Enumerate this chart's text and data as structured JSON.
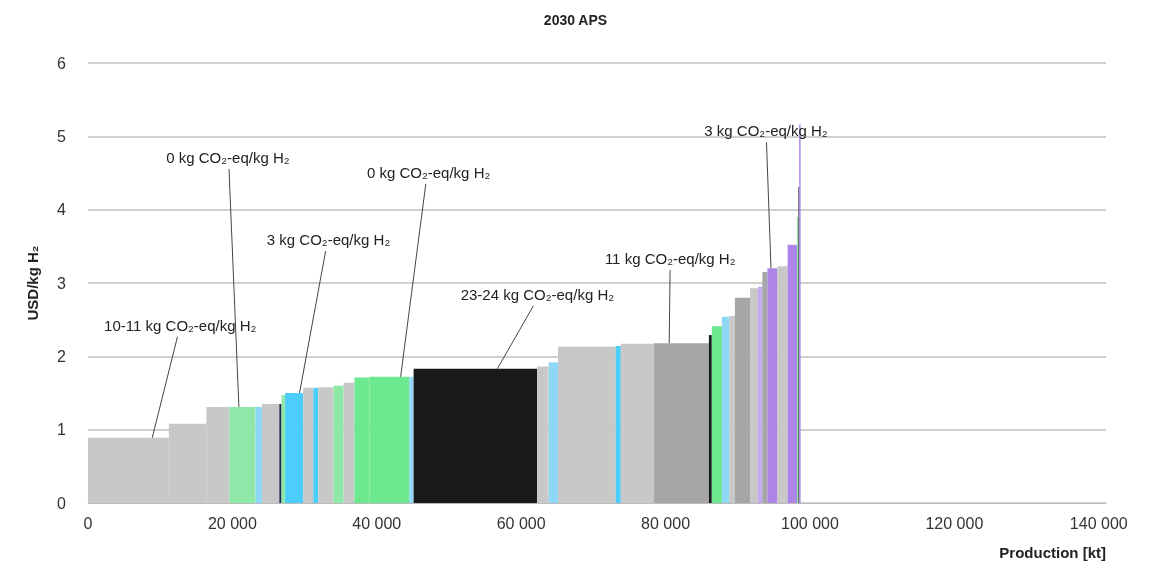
{
  "chart_data": {
    "type": "histogram",
    "title": "2030 APS",
    "xlabel": "Production [kt]",
    "ylabel": "USD/kg H₂",
    "bins": [
      0,
      11200,
      16400,
      19600,
      23200,
      24100,
      26500,
      26800,
      27300,
      29800,
      31200,
      31900,
      34000,
      35400,
      36900,
      39000,
      44500,
      45100,
      62200,
      63800,
      65100,
      73100,
      73800,
      78400,
      86000,
      86400,
      87800,
      88800,
      89600,
      91700,
      92800,
      93400,
      94100,
      95500,
      96900,
      98200,
      98400,
      98500,
      98700
    ],
    "values": [
      0.89,
      1.08,
      1.31,
      1.31,
      1.31,
      1.35,
      1.35,
      1.47,
      1.5,
      1.57,
      1.57,
      1.58,
      1.6,
      1.64,
      1.71,
      1.72,
      1.72,
      1.83,
      1.86,
      1.92,
      2.13,
      2.14,
      2.17,
      2.18,
      2.29,
      2.41,
      2.54,
      2.55,
      2.8,
      2.93,
      2.95,
      3.15,
      3.2,
      3.23,
      3.52,
      3.9,
      4.31,
      5.16
    ],
    "colors": [
      "#c8c8c8",
      "#c8c8c8",
      "#c8c8c8",
      "#8fe8a8",
      "#8fd8f5",
      "#c8c8c8",
      "#1a2a4a",
      "#8fe8a8",
      "#4dcdfa",
      "#c8c8c8",
      "#4dcdfa",
      "#c8c8c8",
      "#8fe8a8",
      "#c8c8c8",
      "#6ce88e",
      "#6ce88e",
      "#8fd8f5",
      "#1a1a1a",
      "#c8c8c8",
      "#8fd8f5",
      "#c8c8c8",
      "#4dcdfa",
      "#c8c8c8",
      "#a6a6a6",
      "#1a1a1a",
      "#6ce88e",
      "#8fd8f5",
      "#c8c8c8",
      "#a6a6a6",
      "#c8c8c8",
      "#c4aaf0",
      "#a6a6a6",
      "#ac85e6",
      "#c8c8c8",
      "#ac85e6",
      "#8fe8a8",
      "#1a1a1a",
      "#ac85e6"
    ],
    "xlim": [
      0,
      141000
    ],
    "xticks": [
      0,
      {
        "value": 20000,
        "label": "20 000"
      },
      {
        "value": 40000,
        "label": "40 000"
      },
      {
        "value": 60000,
        "label": "60 000"
      },
      {
        "value": 80000,
        "label": "80 000"
      },
      {
        "value": 100000,
        "label": "100 000"
      },
      {
        "value": 120000,
        "label": "120 000"
      },
      {
        "value": 140000,
        "label": "140 000"
      }
    ],
    "ylim": [
      0,
      6
    ],
    "yticks": [
      0,
      1,
      2,
      3,
      4,
      5,
      6
    ],
    "grid": "y",
    "annotations": [
      {
        "text": "10-11 kg CO₂-eq/kg H₂",
        "x": 8900,
        "y": 0.89
      },
      {
        "text": "0 kg CO₂-eq/kg H₂",
        "x": 20900,
        "y": 1.31
      },
      {
        "text": "3 kg CO₂-eq/kg H₂",
        "x": 29300,
        "y": 1.5
      },
      {
        "text": "0 kg CO₂-eq/kg H₂",
        "x": 43300,
        "y": 1.72
      },
      {
        "text": "23-24 kg CO₂-eq/kg H₂",
        "x": 56700,
        "y": 1.83
      },
      {
        "text": "11 kg CO₂-eq/kg H₂",
        "x": 80500,
        "y": 2.18
      },
      {
        "text": "3 kg CO₂-eq/kg H₂",
        "x": 94600,
        "y": 3.2
      }
    ]
  }
}
